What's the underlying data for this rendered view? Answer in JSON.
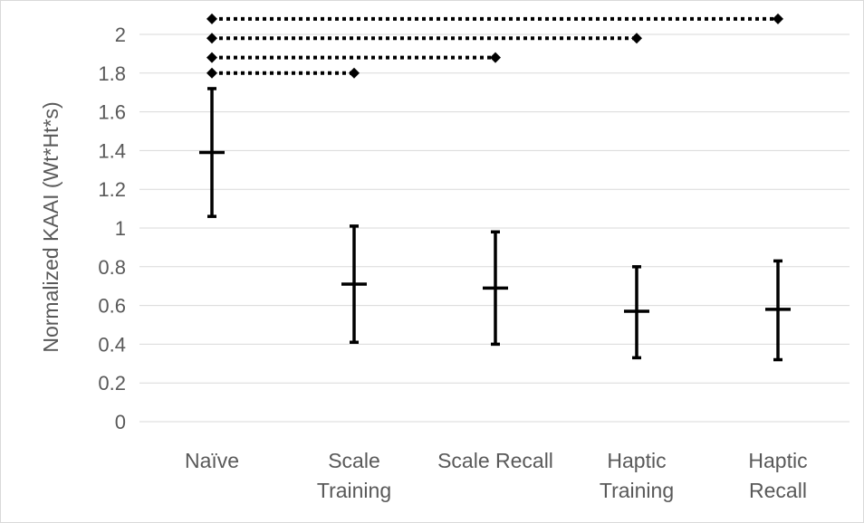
{
  "chart_data": {
    "type": "scatter",
    "title": "",
    "xlabel": "",
    "ylabel": "Normalized KAAI (Wt*Ht*s)",
    "ylim": [
      0,
      2.1
    ],
    "y_ticks": [
      0,
      0.2,
      0.4,
      0.6,
      0.8,
      1,
      1.2,
      1.4,
      1.6,
      1.8,
      2
    ],
    "y_tick_labels": [
      "0",
      "0.2",
      "0.4",
      "0.6",
      "0.8",
      "1",
      "1.2",
      "1.4",
      "1.6",
      "1.8",
      "2"
    ],
    "grid": true,
    "legend": "none",
    "categories": [
      [
        "Naïve"
      ],
      [
        "Scale",
        "Training"
      ],
      [
        "Scale Recall"
      ],
      [
        "Haptic",
        "Training"
      ],
      [
        "Haptic",
        "Recall"
      ]
    ],
    "means": [
      1.39,
      0.71,
      0.69,
      0.57,
      0.58
    ],
    "error_low": [
      1.06,
      0.41,
      0.4,
      0.33,
      0.32
    ],
    "error_high": [
      1.72,
      1.01,
      0.98,
      0.8,
      0.83
    ],
    "significance_brackets": [
      {
        "from": 0,
        "to": 1,
        "y": 1.8
      },
      {
        "from": 0,
        "to": 2,
        "y": 1.88
      },
      {
        "from": 0,
        "to": 3,
        "y": 1.98
      },
      {
        "from": 0,
        "to": 4,
        "y": 2.08
      }
    ],
    "colors": {
      "marks": "#000000",
      "grid": "#d9d9d9",
      "text": "#595959"
    }
  }
}
